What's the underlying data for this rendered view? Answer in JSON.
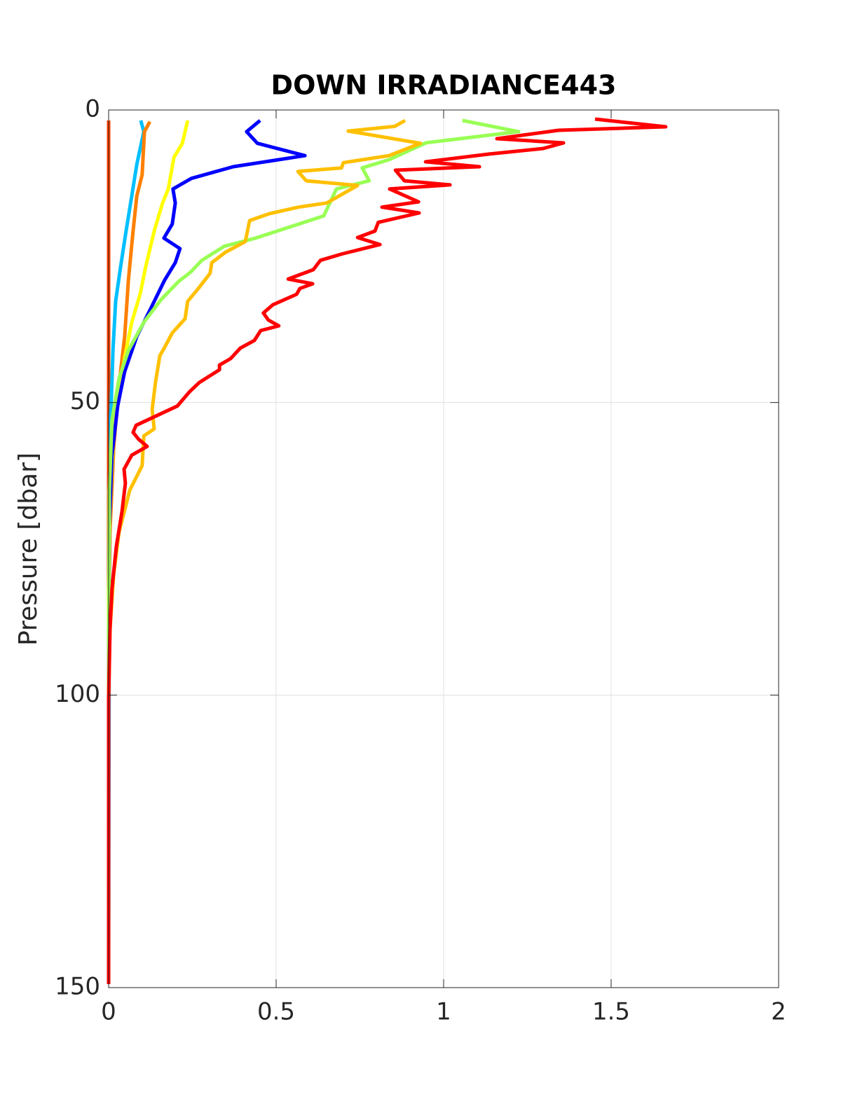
{
  "chart_data": {
    "type": "line",
    "title": "DOWN IRRADIANCE443",
    "ylabel": "Pressure [dbar]",
    "xlim": [
      0,
      2
    ],
    "xticks": [
      0,
      0.5,
      1,
      1.5,
      2
    ],
    "ylim": [
      0,
      150
    ],
    "yticks": [
      0,
      50,
      100,
      150
    ],
    "y_reversed": true,
    "grid": true,
    "series": [
      {
        "color": "#ff4000",
        "x": [
          0,
          0
        ],
        "y": [
          1.8,
          149.4
        ]
      },
      {
        "color": "#00bfff",
        "x": [
          0.096,
          0.105,
          0.084,
          0.069,
          0.052,
          0.036,
          0.021,
          0.013,
          0.006,
          0.002,
          0
        ],
        "y": [
          1.8,
          3.7,
          9.3,
          14.7,
          20.7,
          26.7,
          32.7,
          41.1,
          53.0,
          71.0,
          149.4
        ]
      },
      {
        "color": "#ff8000",
        "x": [
          0.123,
          0.107,
          0.1,
          0.084,
          0.073,
          0.059,
          0.048,
          0.031,
          0.015,
          0.004,
          0,
          0
        ],
        "y": [
          2.0,
          3.7,
          11.1,
          14.7,
          20.7,
          29.1,
          38.7,
          47.0,
          57.8,
          72.2,
          88.9,
          149.4
        ]
      },
      {
        "color": "#ffff00",
        "x": [
          0.236,
          0.22,
          0.195,
          0.178,
          0.161,
          0.136,
          0.111,
          0.094,
          0.069,
          0.048,
          0.027,
          0.013,
          0.004,
          0,
          0
        ],
        "y": [
          1.8,
          5.7,
          8.1,
          13.5,
          15.9,
          20.7,
          26.7,
          31.5,
          36.3,
          42.3,
          49.4,
          57.8,
          67.4,
          83.0,
          149.4
        ]
      },
      {
        "color": "#0000ff",
        "x": [
          0.452,
          0.412,
          0.444,
          0.586,
          0.372,
          0.247,
          0.192,
          0.199,
          0.19,
          0.165,
          0.213,
          0.199,
          0.167,
          0.126,
          0.084,
          0.048,
          0.027,
          0.01,
          0.002,
          0,
          0
        ],
        "y": [
          1.8,
          3.7,
          5.7,
          7.8,
          9.7,
          11.7,
          13.5,
          15.9,
          19.5,
          21.9,
          23.7,
          26.1,
          29.1,
          33.9,
          38.7,
          44.7,
          50.6,
          59.0,
          71.0,
          100.9,
          149.4
        ]
      },
      {
        "color": "#99ff55",
        "x": [
          1.056,
          1.224,
          0.948,
          0.837,
          0.757,
          0.778,
          0.68,
          0.642,
          0.439,
          0.345,
          0.278,
          0.245,
          0.209,
          0.157,
          0.105,
          0.059,
          0.031,
          0.01,
          0.002,
          0,
          0
        ],
        "y": [
          1.8,
          3.7,
          5.6,
          8.5,
          9.9,
          12.1,
          13.5,
          18.1,
          21.9,
          23.3,
          25.7,
          27.7,
          29.3,
          32.4,
          36.3,
          41.1,
          45.9,
          53.0,
          65.0,
          100.9,
          149.4
        ]
      },
      {
        "color": "#ffc000",
        "x": [
          0.885,
          0.854,
          0.715,
          0.931,
          0.837,
          0.701,
          0.695,
          0.565,
          0.59,
          0.743,
          0.651,
          0.567,
          0.481,
          0.421,
          0.408,
          0.349,
          0.308,
          0.303,
          0.268,
          0.236,
          0.228,
          0.19,
          0.165,
          0.153,
          0.14,
          0.13,
          0.136,
          0.105,
          0.1,
          0.063,
          0.031,
          0.015,
          0.004,
          0,
          0
        ],
        "y": [
          1.8,
          2.8,
          3.6,
          5.7,
          7.8,
          9.0,
          9.9,
          10.5,
          12.1,
          12.9,
          15.9,
          16.6,
          17.7,
          18.9,
          22.5,
          24.3,
          26.1,
          27.9,
          30.5,
          32.7,
          35.7,
          38.1,
          40.8,
          42.0,
          46.5,
          51.2,
          54.5,
          55.7,
          60.8,
          65.0,
          72.2,
          79.4,
          88.9,
          100.9,
          149.4
        ]
      },
      {
        "color": "#ff0000",
        "x": [
          1.452,
          1.663,
          1.343,
          1.159,
          1.358,
          1.297,
          1.134,
          0.946,
          1.107,
          0.856,
          0.883,
          1.019,
          0.839,
          0.925,
          0.816,
          0.927,
          0.805,
          0.795,
          0.743,
          0.81,
          0.697,
          0.632,
          0.611,
          0.536,
          0.609,
          0.571,
          0.561,
          0.49,
          0.462,
          0.477,
          0.508,
          0.454,
          0.435,
          0.393,
          0.364,
          0.331,
          0.331,
          0.27,
          0.241,
          0.205,
          0.082,
          0.073,
          0.09,
          0.115,
          0.069,
          0.046,
          0.05,
          0.04,
          0.023,
          0.01,
          0.004,
          0,
          0
        ],
        "y": [
          1.56,
          2.87,
          3.47,
          4.91,
          5.63,
          6.58,
          7.54,
          8.86,
          9.7,
          10.3,
          12.1,
          12.8,
          13.5,
          15.7,
          16.6,
          17.6,
          19.2,
          20.7,
          21.8,
          23.0,
          24.6,
          25.7,
          27.3,
          28.9,
          29.7,
          30.5,
          31.5,
          33.3,
          34.7,
          35.9,
          36.9,
          37.7,
          39.4,
          40.7,
          42.5,
          43.6,
          44.4,
          46.6,
          48.2,
          50.6,
          53.9,
          55.1,
          56.3,
          57.5,
          59.0,
          61.4,
          63.8,
          68.6,
          74.6,
          81.8,
          88.9,
          100.9,
          149.4
        ]
      }
    ]
  }
}
